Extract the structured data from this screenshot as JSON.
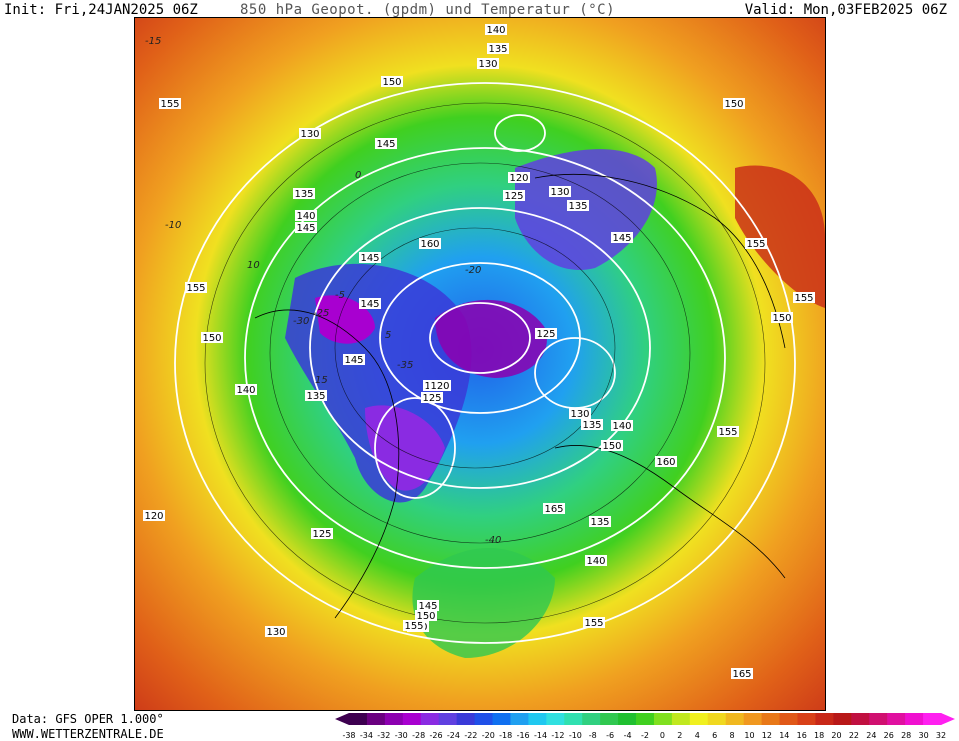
{
  "header": {
    "init": "Init: Fri,24JAN2025 06Z",
    "title": "850 hPa Geopot. (gpdm) und Temperatur (°C)",
    "valid": "Valid: Mon,03FEB2025 06Z"
  },
  "footer": {
    "data_source": "Data: GFS OPER 1.000°",
    "website": "WWW.WETTERZENTRALE.DE"
  },
  "colorbar": {
    "ticks": [
      "-38",
      "-34",
      "-32",
      "-30",
      "-28",
      "-26",
      "-24",
      "-22",
      "-20",
      "-18",
      "-16",
      "-14",
      "-12",
      "-10",
      "-8",
      "-6",
      "-4",
      "-2",
      "0",
      "2",
      "4",
      "6",
      "8",
      "10",
      "12",
      "14",
      "16",
      "18",
      "20",
      "22",
      "24",
      "26",
      "28",
      "30",
      "32"
    ],
    "colors": [
      "#3d0050",
      "#6a0080",
      "#8c00b0",
      "#a800d0",
      "#8a2be2",
      "#6040e0",
      "#3a3ad8",
      "#2050e8",
      "#1070f0",
      "#20a0f0",
      "#20c8f0",
      "#30e0e0",
      "#30e0b0",
      "#30d080",
      "#30c850",
      "#20c030",
      "#40d020",
      "#80e020",
      "#c0e820",
      "#f0f020",
      "#f0d820",
      "#f0b820",
      "#f09820",
      "#e87818",
      "#e05818",
      "#d84018",
      "#c82818",
      "#b81818",
      "#c01040",
      "#d01070",
      "#e010a0",
      "#f010d0",
      "#ff20f0"
    ]
  },
  "map": {
    "contour_labels": [
      "140",
      "135",
      "130",
      "150",
      "155",
      "130",
      "145",
      "135",
      "140",
      "145",
      "120",
      "125",
      "130",
      "135",
      "150",
      "145",
      "155",
      "160",
      "145",
      "155",
      "155",
      "150",
      "145",
      "125",
      "145",
      "150",
      "135",
      "140",
      "130",
      "125",
      "120",
      "130",
      "135",
      "140",
      "150",
      "155",
      "160",
      "165",
      "135",
      "140",
      "145",
      "150",
      "160",
      "155",
      "155",
      "120",
      "125",
      "130",
      "165"
    ],
    "temperature_labels": [
      "-15",
      "-10",
      "-5",
      "0",
      "5",
      "10",
      "-20",
      "-25",
      "-30",
      "-35",
      "15",
      "-40"
    ]
  }
}
